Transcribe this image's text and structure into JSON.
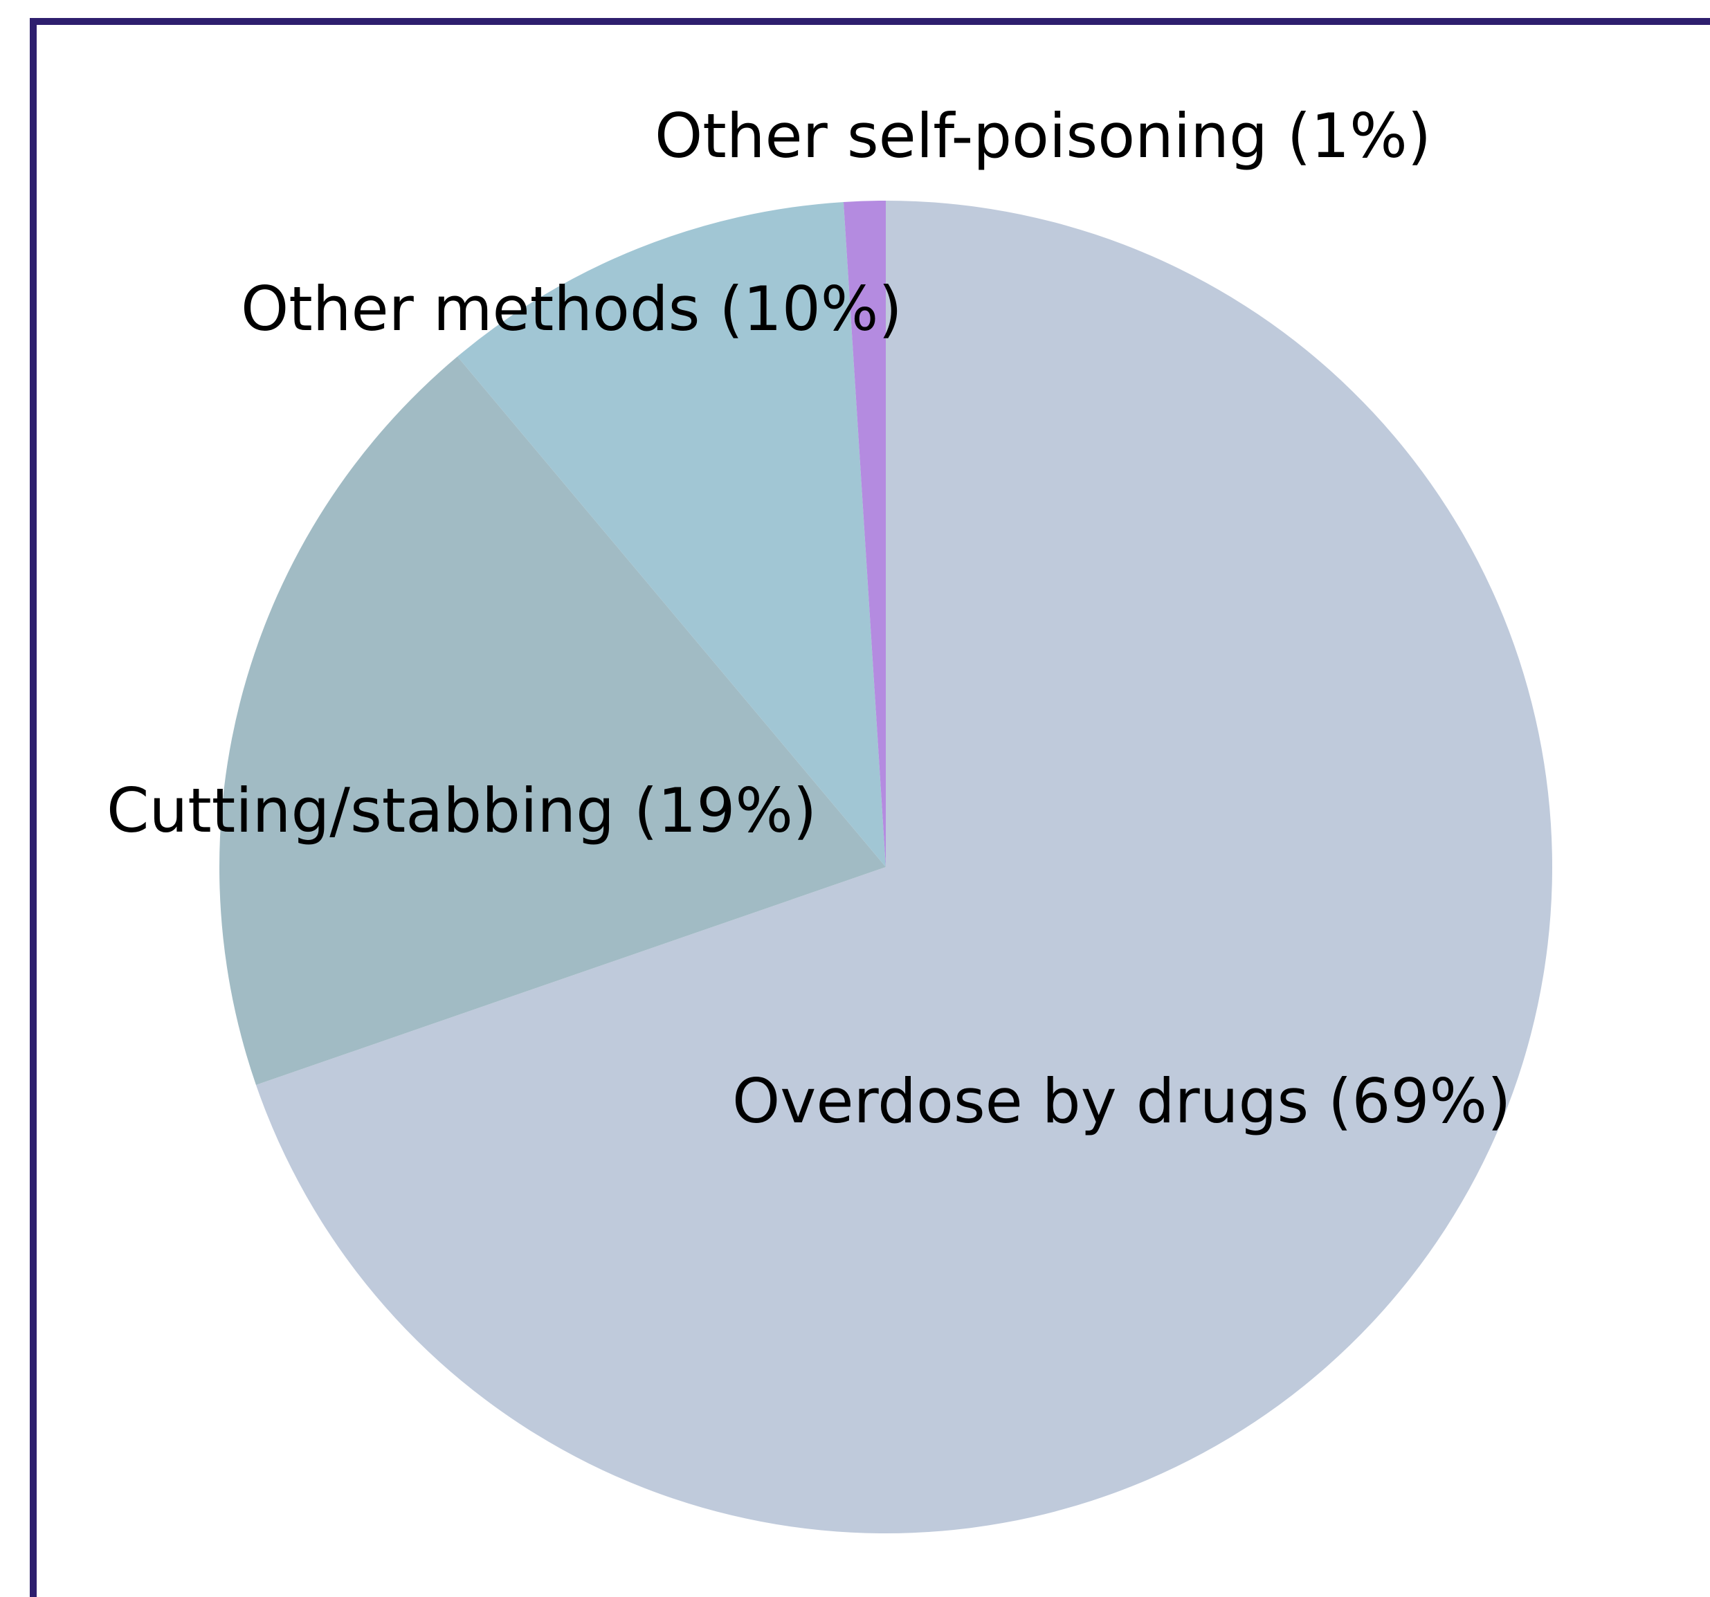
{
  "chart_data": {
    "type": "pie",
    "title": "",
    "start_angle_deg": 0,
    "direction": "clockwise",
    "slices": [
      {
        "label": "Overdose by drugs (69%)",
        "name": "Overdose by drugs",
        "value": 69,
        "color": "#bfcadb"
      },
      {
        "label": "Cutting/stabbing (19%)",
        "name": "Cutting/stabbing",
        "value": 19,
        "color": "#a1bbc4"
      },
      {
        "label": "Other methods (10%)",
        "name": "Other methods",
        "value": 10,
        "color": "#a1c6d4"
      },
      {
        "label": "Other self-poisoning (1%)",
        "name": "Other self-poisoning",
        "value": 1,
        "color": "#b48be0"
      }
    ]
  },
  "colors": {
    "frame_border": "#2e1f6e",
    "background": "#ffffff"
  }
}
